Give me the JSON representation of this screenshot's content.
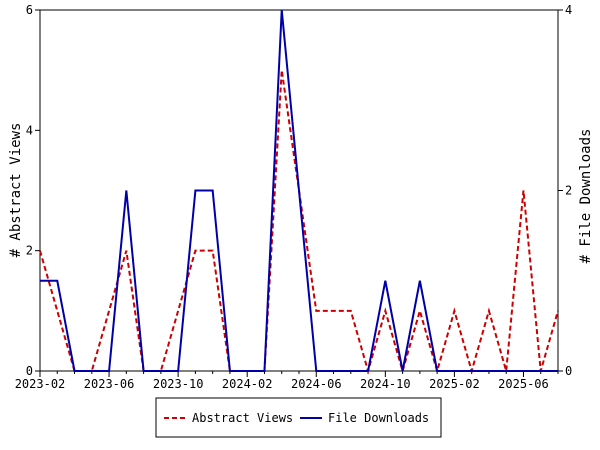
{
  "chart_data": {
    "type": "line",
    "categories": [
      "2023-02",
      null,
      null,
      null,
      "2023-06",
      null,
      null,
      null,
      "2023-10",
      null,
      null,
      null,
      "2024-02",
      null,
      null,
      null,
      "2024-06",
      null,
      null,
      null,
      "2024-10",
      null,
      null,
      null,
      "2025-02",
      null,
      null,
      null,
      "2025-06",
      null,
      null
    ],
    "series": [
      {
        "name": "Abstract Views",
        "color": "#cc0000",
        "values": [
          2,
          1,
          0,
          0,
          1,
          2,
          0,
          0,
          1,
          2,
          2,
          0,
          0,
          0,
          5,
          3,
          1,
          1,
          1,
          0,
          1,
          0,
          1,
          0,
          1,
          0,
          1,
          0,
          3,
          0,
          1
        ]
      },
      {
        "name": "File Downloads",
        "color": "#0000aa",
        "axis": "y2",
        "values": [
          1,
          1,
          0,
          0,
          0,
          2,
          0,
          0,
          0,
          2,
          2,
          0,
          0,
          0,
          4,
          2,
          0,
          0,
          0,
          0,
          1,
          0,
          1,
          0,
          0,
          0,
          0,
          0,
          0,
          0,
          0
        ]
      }
    ],
    "ylabel": "# Abstract Views",
    "y2label": "# File Downloads",
    "ylim": [
      0,
      6
    ],
    "yticks": [
      0,
      2,
      4,
      6
    ],
    "y2lim": [
      0,
      4
    ],
    "y2ticks": [
      0,
      2,
      4
    ],
    "legend": "bottom"
  }
}
